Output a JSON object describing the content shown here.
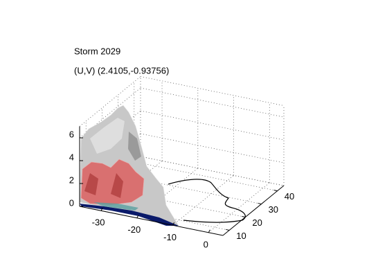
{
  "chart_data": {
    "type": "surface3d",
    "title": "Storm 2029",
    "subtitle": "(U,V) (2.4105,-0.93756)",
    "xlim": [
      -36,
      4
    ],
    "ylim": [
      6,
      44
    ],
    "zlim": [
      0,
      7
    ],
    "xticks": [
      -30,
      -20,
      -10,
      0
    ],
    "yticks": [
      10,
      20,
      30,
      40
    ],
    "zticks": [
      0,
      2,
      4,
      6
    ],
    "grid": true
  }
}
